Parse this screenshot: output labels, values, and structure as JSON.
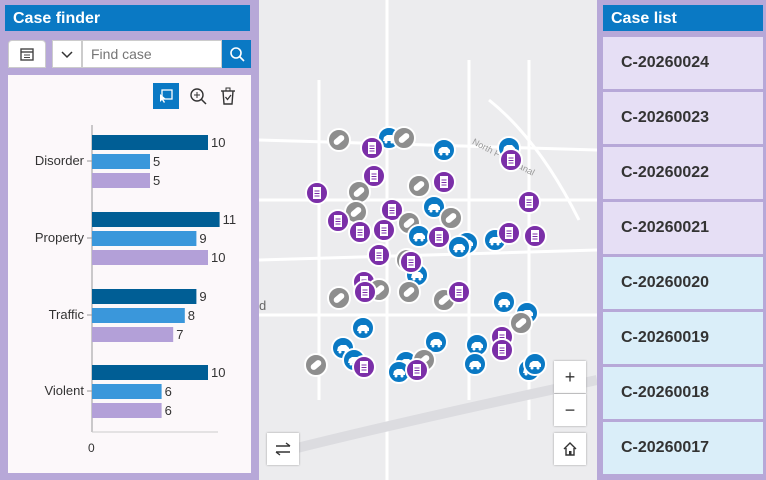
{
  "left_panel": {
    "title": "Case finder",
    "search_placeholder": "Find case"
  },
  "map": {
    "label": "North Park Canal",
    "edge_label": "d",
    "zoom_in": "+",
    "zoom_out": "−"
  },
  "right_panel": {
    "title": "Case list",
    "cases": [
      "C-20260024",
      "C-20260023",
      "C-20260022",
      "C-20260021",
      "C-20260020",
      "C-20260019",
      "C-20260018",
      "C-20260017"
    ]
  },
  "colors": {
    "accent": "#0a79c4",
    "series": [
      "#005e95",
      "#3a97db",
      "#b3a0d8"
    ],
    "selected_case_bg": "#e6dff5",
    "case_bg": "#daeef9"
  },
  "chart_data": {
    "type": "bar",
    "orientation": "horizontal",
    "categories": [
      "Disorder",
      "Property",
      "Traffic",
      "Violent"
    ],
    "series": [
      {
        "values": [
          10,
          11,
          9,
          10
        ]
      },
      {
        "values": [
          5,
          9,
          8,
          6
        ]
      },
      {
        "values": [
          5,
          10,
          7,
          6
        ]
      }
    ],
    "x_tick_labels": [
      "0"
    ]
  }
}
